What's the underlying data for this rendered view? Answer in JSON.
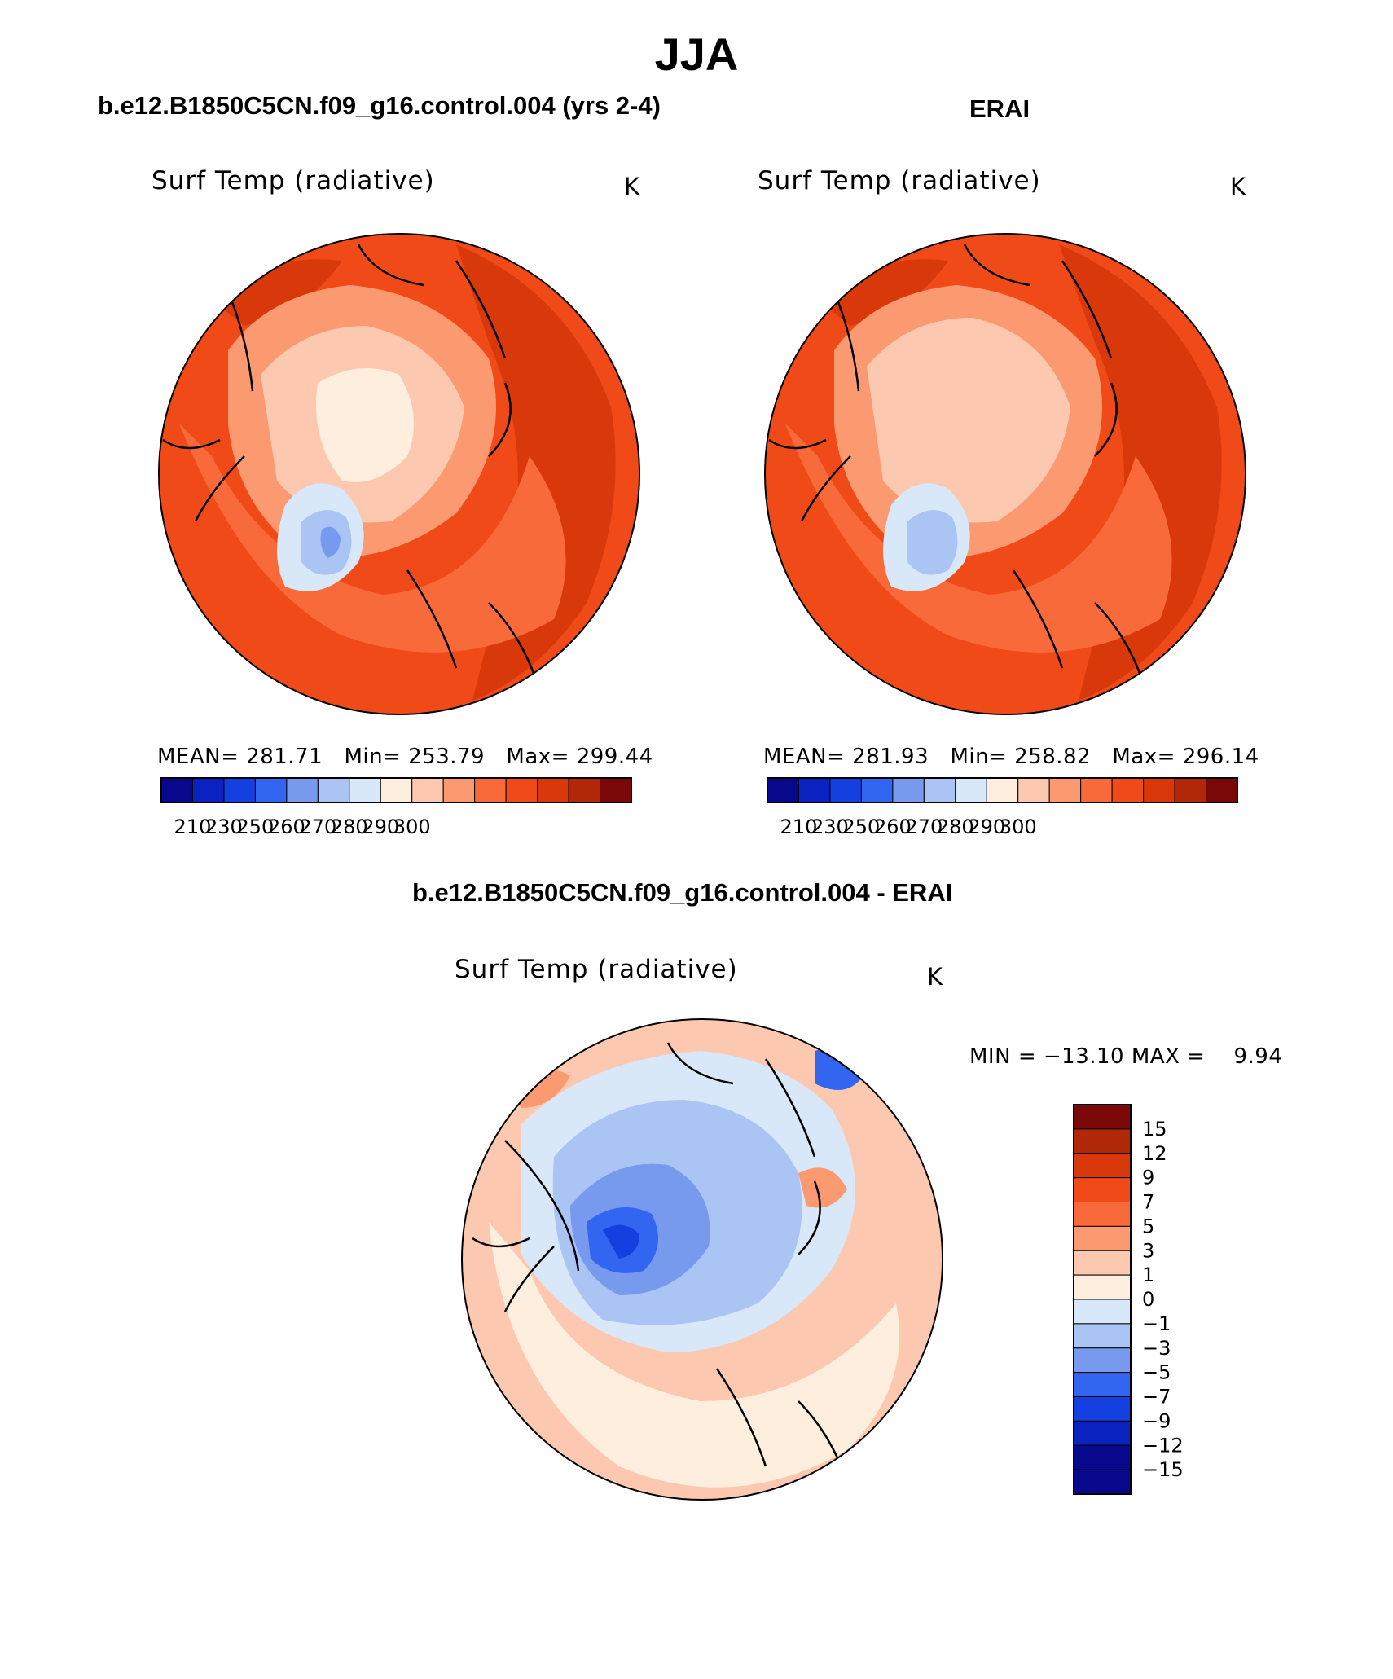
{
  "figure": {
    "season_title": "JJA",
    "diff_title": "b.e12.B1850C5CN.f09_g16.control.004 - ERAI"
  },
  "panels": [
    {
      "case_title": "b.e12.B1850C5CN.f09_g16.control.004 (yrs 2-4)",
      "variable": "Surf Temp (radiative)",
      "units": "K",
      "mean_label": "MEAN=",
      "mean": "281.71",
      "min_label": "Min=",
      "min": "253.79",
      "max_label": "Max=",
      "max": "299.44"
    },
    {
      "case_title": "ERAI",
      "variable": "Surf Temp (radiative)",
      "units": "K",
      "mean_label": "MEAN=",
      "mean": "281.93",
      "min_label": "Min=",
      "min": "258.82",
      "max_label": "Max=",
      "max": "296.14"
    }
  ],
  "diff_panel": {
    "variable": "Surf Temp (radiative)",
    "units": "K",
    "minmax_text": "MIN = −13.10 MAX =    9.94"
  },
  "chart_data": [
    {
      "type": "heatmap",
      "projection": "polar-stereographic-north",
      "title": "Surf Temp (radiative)",
      "units": "K",
      "mean": 281.71,
      "min": 253.79,
      "max": 299.44,
      "colorbar_levels": [
        210,
        230,
        250,
        260,
        270,
        280,
        290,
        300
      ],
      "colorbar_tick_labels": [
        "210",
        "230",
        "250",
        "260",
        "270",
        "280",
        "290",
        "300"
      ],
      "colors": [
        "#08088c",
        "#0a22c0",
        "#1540e0",
        "#3366f0",
        "#7799ee",
        "#aac4f4",
        "#d8e8f8",
        "#fdeedd",
        "#fdc8b0",
        "#fb9a70",
        "#f86a3a",
        "#f04a18",
        "#d8380a",
        "#b02808",
        "#7a0808"
      ]
    },
    {
      "type": "heatmap",
      "projection": "polar-stereographic-north",
      "title": "Surf Temp (radiative)",
      "units": "K",
      "mean": 281.93,
      "min": 258.82,
      "max": 296.14,
      "colorbar_levels": [
        210,
        230,
        250,
        260,
        270,
        280,
        290,
        300
      ],
      "colorbar_tick_labels": [
        "210",
        "230",
        "250",
        "260",
        "270",
        "280",
        "290",
        "300"
      ],
      "colors": [
        "#08088c",
        "#0a22c0",
        "#1540e0",
        "#3366f0",
        "#7799ee",
        "#aac4f4",
        "#d8e8f8",
        "#fdeedd",
        "#fdc8b0",
        "#fb9a70",
        "#f86a3a",
        "#f04a18",
        "#d8380a",
        "#b02808",
        "#7a0808"
      ]
    },
    {
      "type": "heatmap",
      "projection": "polar-stereographic-north",
      "title": "Surf Temp (radiative)",
      "units": "K",
      "min": -13.1,
      "max": 9.94,
      "colorbar_levels": [
        15,
        12,
        9,
        7,
        5,
        3,
        1,
        0,
        -1,
        -3,
        -5,
        -7,
        -9,
        -12,
        -15
      ],
      "colorbar_tick_labels": [
        "15",
        "12",
        "9",
        "7",
        "5",
        "3",
        "1",
        "0",
        "−1",
        "−3",
        "−5",
        "−7",
        "−9",
        "−12",
        "−15"
      ],
      "colors": [
        "#7a0808",
        "#b02808",
        "#d8380a",
        "#f04a18",
        "#f86a3a",
        "#fb9a70",
        "#fdc8b0",
        "#fdeedd",
        "#d8e8f8",
        "#aac4f4",
        "#7799ee",
        "#3366f0",
        "#1540e0",
        "#0a22c0",
        "#08088c",
        "#08088c"
      ]
    }
  ]
}
